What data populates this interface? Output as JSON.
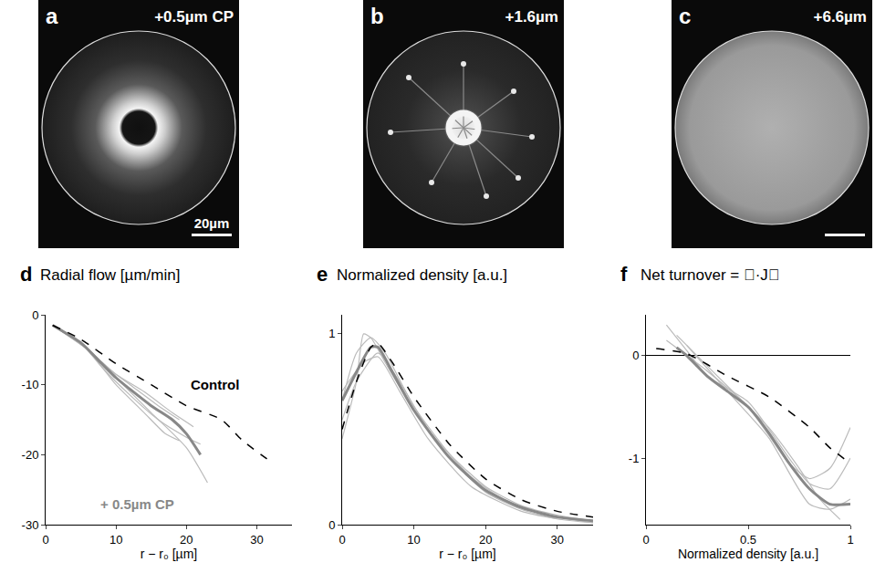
{
  "panels": [
    {
      "label": "a",
      "text": "+0.5µm CP",
      "scale_bar": "20µm"
    },
    {
      "label": "b",
      "text": "+1.6µm"
    },
    {
      "label": "c",
      "text": "+6.6µm",
      "scale_bar": true
    }
  ],
  "chart_data": [
    {
      "type": "line",
      "label": "d",
      "title": "Radial flow [µm/min]",
      "x_label": "r − r₀ [µm]",
      "xlim": [
        0,
        35
      ],
      "xticks": [
        0,
        10,
        20,
        30
      ],
      "ylim": [
        -30,
        0
      ],
      "yticks": [
        0,
        -10,
        -20,
        -30
      ],
      "grid": false,
      "annotations": [
        {
          "text": "Control",
          "x": 24,
          "y": -10,
          "color": "#000000"
        },
        {
          "text": "+ 0.5µm CP",
          "x": 13,
          "y": -27,
          "color": "#888888"
        }
      ],
      "series": [
        {
          "color": "#bbbbbb",
          "line_style": "solid",
          "x": [
            1,
            5,
            8,
            12,
            16,
            19
          ],
          "values": [
            -1.5,
            -4,
            -7,
            -10,
            -13,
            -15
          ]
        },
        {
          "color": "#bbbbbb",
          "line_style": "solid",
          "x": [
            1,
            5,
            8,
            12,
            16,
            20,
            22
          ],
          "values": [
            -1.5,
            -4,
            -7.5,
            -11.5,
            -15,
            -17.5,
            -18.5
          ]
        },
        {
          "color": "#bbbbbb",
          "line_style": "solid",
          "x": [
            1,
            6,
            10,
            15,
            20,
            23
          ],
          "values": [
            -1.5,
            -5,
            -9,
            -14,
            -19,
            -24
          ]
        },
        {
          "color": "#bbbbbb",
          "line_style": "solid",
          "x": [
            1,
            6,
            10,
            14,
            18,
            21
          ],
          "values": [
            -1.5,
            -5,
            -8.5,
            -11,
            -14,
            -16
          ]
        },
        {
          "color": "#bbbbbb",
          "line_style": "solid",
          "x": [
            2,
            6,
            10,
            14,
            17,
            19
          ],
          "values": [
            -2,
            -5,
            -10,
            -14,
            -17,
            -18
          ]
        },
        {
          "name": "+ 0.5µm CP",
          "color": "#888888",
          "line_style": "thick",
          "x": [
            1,
            5,
            8,
            10,
            15,
            18,
            20,
            22
          ],
          "values": [
            -1.5,
            -4,
            -7,
            -9,
            -13,
            -15,
            -17,
            -20
          ]
        },
        {
          "name": "Control",
          "color": "#000000",
          "line_style": "dashed",
          "x": [
            1,
            5,
            10,
            15,
            20,
            25,
            28,
            32
          ],
          "values": [
            -1.5,
            -3.5,
            -7,
            -10,
            -13,
            -15,
            -18,
            -21
          ]
        }
      ]
    },
    {
      "type": "line",
      "label": "e",
      "title": "Normalized density [a.u.]",
      "x_label": "r − r₀ [µm]",
      "xlim": [
        0,
        35
      ],
      "xticks": [
        0,
        10,
        20,
        30
      ],
      "ylim": [
        0,
        1.1
      ],
      "yticks": [
        0,
        1
      ],
      "grid": false,
      "series": [
        {
          "color": "#bbbbbb",
          "line_style": "solid",
          "x": [
            0,
            2,
            3,
            4,
            6,
            10,
            15,
            20,
            25,
            30,
            35
          ],
          "values": [
            0.45,
            0.75,
            1.0,
            0.98,
            0.85,
            0.6,
            0.35,
            0.17,
            0.08,
            0.03,
            0.01
          ]
        },
        {
          "color": "#bbbbbb",
          "line_style": "solid",
          "x": [
            0,
            2,
            4,
            6,
            10,
            15,
            20,
            25,
            30,
            35
          ],
          "values": [
            0.65,
            0.9,
            0.98,
            0.9,
            0.62,
            0.37,
            0.2,
            0.1,
            0.05,
            0.02
          ]
        },
        {
          "color": "#bbbbbb",
          "line_style": "solid",
          "x": [
            0,
            2,
            5,
            8,
            12,
            18,
            24,
            30,
            35
          ],
          "values": [
            0.55,
            0.75,
            0.9,
            0.75,
            0.5,
            0.25,
            0.1,
            0.04,
            0.01
          ]
        },
        {
          "color": "#bbbbbb",
          "line_style": "solid",
          "x": [
            0,
            3,
            5,
            8,
            12,
            18,
            25,
            30
          ],
          "values": [
            0.7,
            0.85,
            0.88,
            0.7,
            0.45,
            0.2,
            0.07,
            0.03
          ]
        },
        {
          "name": "+ 0.5µm CP",
          "color": "#888888",
          "line_style": "thick",
          "x": [
            0,
            2,
            4,
            5,
            7,
            10,
            15,
            20,
            25,
            30,
            35
          ],
          "values": [
            0.65,
            0.8,
            0.93,
            0.93,
            0.8,
            0.6,
            0.35,
            0.18,
            0.09,
            0.04,
            0.02
          ]
        },
        {
          "name": "Control",
          "color": "#000000",
          "line_style": "dashed",
          "x": [
            0,
            2,
            4,
            5,
            7,
            10,
            15,
            20,
            25,
            30,
            35
          ],
          "values": [
            0.5,
            0.75,
            0.93,
            0.95,
            0.85,
            0.67,
            0.42,
            0.24,
            0.13,
            0.07,
            0.04
          ]
        }
      ]
    },
    {
      "type": "line",
      "label": "f",
      "title": "Net turnover = ∇·J⃗",
      "x_label": "Normalized density [a.u.]",
      "xlim": [
        0,
        1
      ],
      "xticks": [
        0,
        0.5,
        1
      ],
      "ylim": [
        -1.65,
        0.4
      ],
      "yticks": [
        0,
        -1
      ],
      "grid": false,
      "series": [
        {
          "color": "#bbbbbb",
          "line_style": "solid",
          "x": [
            0.1,
            0.2,
            0.3,
            0.5,
            0.7,
            0.8,
            0.9,
            1
          ],
          "values": [
            0.3,
            0.05,
            -0.2,
            -0.45,
            -1.0,
            -1.25,
            -1.3,
            -1.0
          ]
        },
        {
          "color": "#bbbbbb",
          "line_style": "solid",
          "x": [
            0.15,
            0.25,
            0.4,
            0.6,
            0.75,
            0.85,
            0.95
          ],
          "values": [
            0.2,
            0,
            -0.3,
            -0.7,
            -1.1,
            -1.4,
            -1.6
          ]
        },
        {
          "color": "#bbbbbb",
          "line_style": "solid",
          "x": [
            0.1,
            0.3,
            0.5,
            0.7,
            0.8,
            0.9,
            1
          ],
          "values": [
            0.15,
            -0.15,
            -0.5,
            -1.05,
            -1.2,
            -1.1,
            -0.7
          ]
        },
        {
          "color": "#bbbbbb",
          "line_style": "solid",
          "x": [
            0.2,
            0.4,
            0.6,
            0.8,
            0.9,
            1
          ],
          "values": [
            0.1,
            -0.35,
            -0.8,
            -1.45,
            -1.5,
            -1.4
          ]
        },
        {
          "name": "+ 0.5µm CP",
          "color": "#888888",
          "line_style": "thick",
          "x": [
            0.15,
            0.2,
            0.3,
            0.4,
            0.5,
            0.6,
            0.7,
            0.8,
            0.9,
            1
          ],
          "values": [
            0.08,
            0,
            -0.2,
            -0.35,
            -0.5,
            -0.75,
            -1.05,
            -1.3,
            -1.45,
            -1.45
          ]
        },
        {
          "name": "Control",
          "color": "#000000",
          "line_style": "dashed",
          "x": [
            0.05,
            0.2,
            0.4,
            0.6,
            0.8,
            0.9,
            1
          ],
          "values": [
            0.07,
            0.02,
            -0.2,
            -0.4,
            -0.7,
            -0.9,
            -1.05
          ]
        }
      ]
    }
  ]
}
